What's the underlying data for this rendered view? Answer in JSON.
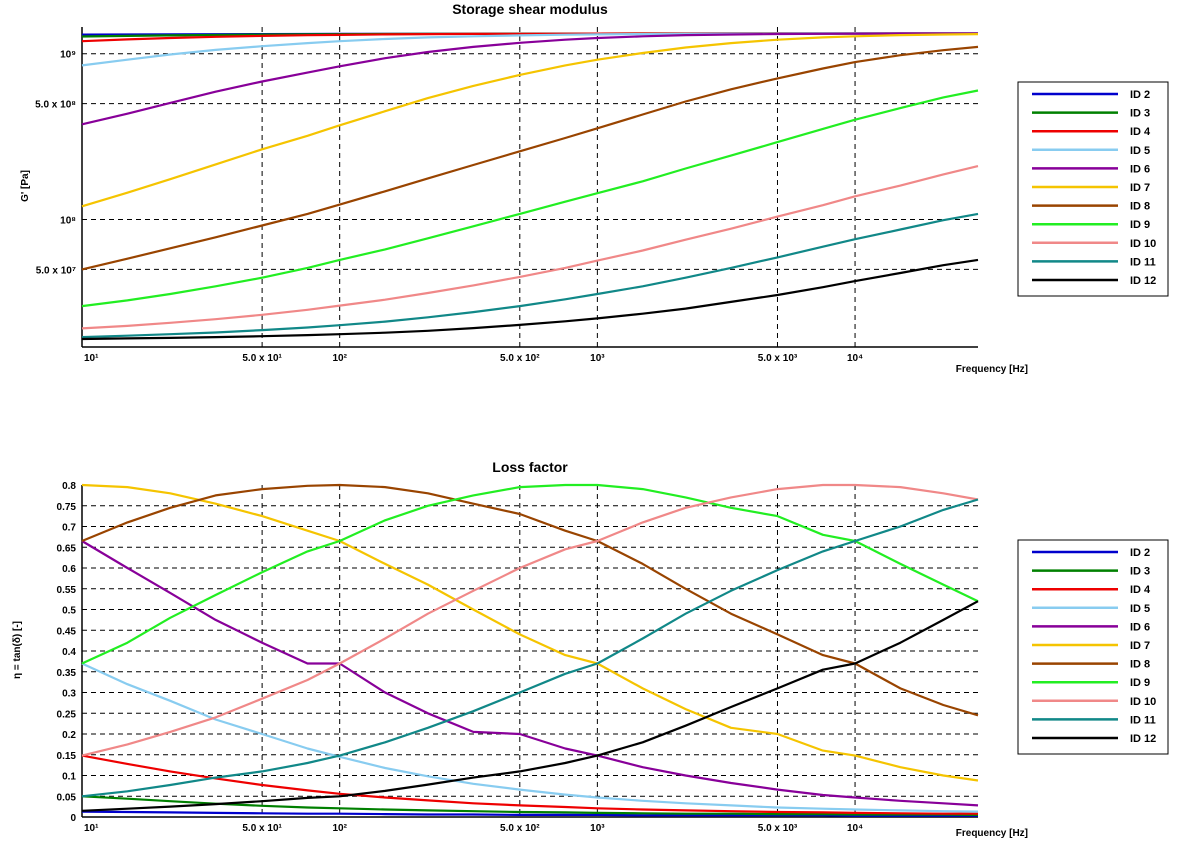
{
  "chart_data": [
    {
      "type": "line",
      "title": "Storage shear modulus",
      "xlabel": "Frequency [Hz]",
      "ylabel": "G' [Pa]",
      "xscale": "log",
      "yscale": "log",
      "xlim": [
        10,
        30000
      ],
      "ylim": [
        17000000,
        1450000000
      ],
      "x": [
        10,
        15,
        22,
        33,
        50,
        75,
        100,
        150,
        220,
        330,
        500,
        750,
        1000,
        1500,
        2200,
        3300,
        5000,
        7500,
        10000,
        15000,
        22000,
        30000
      ],
      "x_ticks": [
        {
          "value": 10,
          "label": "10¹"
        },
        {
          "value": 50,
          "label": "5.0 x 10¹"
        },
        {
          "value": 100,
          "label": "10²"
        },
        {
          "value": 500,
          "label": "5.0 x 10²"
        },
        {
          "value": 1000,
          "label": "10³"
        },
        {
          "value": 5000,
          "label": "5.0 x 10³"
        },
        {
          "value": 10000,
          "label": "10⁴"
        }
      ],
      "y_ticks": [
        {
          "value": 1000000000,
          "label": "10⁹"
        },
        {
          "value": 500000000,
          "label": "5.0 x 10⁸"
        },
        {
          "value": 100000000,
          "label": "10⁸"
        },
        {
          "value": 50000000,
          "label": "5.0 x 10⁷"
        }
      ],
      "grid": true,
      "legend_position": "right",
      "series": [
        {
          "name": "ID 2",
          "color": "#0000cc",
          "values": [
            1304000000,
            1307000000,
            1310000000,
            1312000000,
            1314000000,
            1316000000,
            1317000000,
            1318000000,
            1319000000,
            1320000000,
            1321000000,
            1322000000,
            1322000000,
            1323000000,
            1323000000,
            1324000000,
            1324000000,
            1324000000,
            1325000000,
            1325000000,
            1325000000,
            1325000000
          ]
        },
        {
          "name": "ID 3",
          "color": "#008000",
          "values": [
            1270000000,
            1281000000,
            1290000000,
            1298000000,
            1304000000,
            1309000000,
            1312000000,
            1315000000,
            1318000000,
            1320000000,
            1321000000,
            1322000000,
            1323000000,
            1324000000,
            1324000000,
            1325000000,
            1325000000,
            1325000000,
            1325000000,
            1325000000,
            1325000000,
            1325000000
          ]
        },
        {
          "name": "ID 4",
          "color": "#ee0000",
          "values": [
            1190000000,
            1220000000,
            1245000000,
            1265000000,
            1281000000,
            1293000000,
            1300000000,
            1308000000,
            1313000000,
            1317000000,
            1320000000,
            1322000000,
            1323000000,
            1324000000,
            1324000000,
            1325000000,
            1325000000,
            1325000000,
            1325000000,
            1325000000,
            1325000000,
            1325000000
          ]
        },
        {
          "name": "ID 5",
          "color": "#88ccf0",
          "values": [
            850000000,
            920000000,
            990000000,
            1055000000,
            1110000000,
            1160000000,
            1190000000,
            1228000000,
            1255000000,
            1275000000,
            1290000000,
            1302000000,
            1308000000,
            1314000000,
            1318000000,
            1321000000,
            1322000000,
            1324000000,
            1324000000,
            1325000000,
            1325000000,
            1325000000
          ]
        },
        {
          "name": "ID 6",
          "color": "#880099",
          "values": [
            375000000,
            435000000,
            505000000,
            590000000,
            680000000,
            770000000,
            840000000,
            940000000,
            1025000000,
            1100000000,
            1165000000,
            1215000000,
            1245000000,
            1275000000,
            1295000000,
            1307000000,
            1315000000,
            1320000000,
            1322000000,
            1324000000,
            1325000000,
            1325000000
          ]
        },
        {
          "name": "ID 7",
          "color": "#f5c400",
          "values": [
            120000000,
            145000000,
            175000000,
            215000000,
            265000000,
            320000000,
            370000000,
            450000000,
            540000000,
            640000000,
            745000000,
            850000000,
            920000000,
            1010000000,
            1090000000,
            1160000000,
            1215000000,
            1255000000,
            1275000000,
            1295000000,
            1307000000,
            1313000000
          ]
        },
        {
          "name": "ID 8",
          "color": "#994400",
          "values": [
            50000000,
            58000000,
            67000000,
            78000000,
            92000000,
            108000000,
            123000000,
            148000000,
            177000000,
            213000000,
            258000000,
            310000000,
            355000000,
            430000000,
            515000000,
            610000000,
            710000000,
            815000000,
            890000000,
            980000000,
            1050000000,
            1100000000
          ]
        },
        {
          "name": "ID 9",
          "color": "#22ee22",
          "values": [
            30000000,
            32500000,
            35500000,
            39500000,
            44500000,
            51000000,
            57000000,
            66000000,
            77000000,
            91000000,
            108000000,
            128000000,
            144000000,
            170000000,
            203000000,
            243000000,
            293000000,
            352000000,
            400000000,
            470000000,
            545000000,
            600000000
          ]
        },
        {
          "name": "ID 10",
          "color": "#f08888",
          "values": [
            22000000,
            22800000,
            23800000,
            25000000,
            26600000,
            28500000,
            30200000,
            32800000,
            36000000,
            40000000,
            45000000,
            51000000,
            56500000,
            65000000,
            75500000,
            88000000,
            104000000,
            122000000,
            138000000,
            160000000,
            187000000,
            210000000
          ]
        },
        {
          "name": "ID 11",
          "color": "#118888",
          "values": [
            19500000,
            19900000,
            20300000,
            20800000,
            21500000,
            22300000,
            23000000,
            24200000,
            25700000,
            27600000,
            30000000,
            33000000,
            35500000,
            39500000,
            44500000,
            51000000,
            59000000,
            68500000,
            76000000,
            87000000,
            99000000,
            108000000
          ]
        },
        {
          "name": "ID 12",
          "color": "#000000",
          "values": [
            19000000,
            19150000,
            19300000,
            19500000,
            19750000,
            20050000,
            20300000,
            20750000,
            21300000,
            22100000,
            23100000,
            24300000,
            25300000,
            27000000,
            29000000,
            31800000,
            35000000,
            39000000,
            42500000,
            47500000,
            53000000,
            57000000
          ]
        }
      ]
    },
    {
      "type": "line",
      "title": "Loss factor",
      "xlabel": "Frequency [Hz]",
      "ylabel": "η = tan(δ) [-]",
      "xscale": "log",
      "yscale": "linear",
      "xlim": [
        10,
        30000
      ],
      "ylim": [
        0,
        0.8
      ],
      "x": [
        10,
        15,
        22,
        33,
        50,
        75,
        100,
        150,
        220,
        330,
        500,
        750,
        1000,
        1500,
        2200,
        3300,
        5000,
        7500,
        10000,
        15000,
        22000,
        30000
      ],
      "x_ticks": [
        {
          "value": 10,
          "label": "10¹"
        },
        {
          "value": 50,
          "label": "5.0 x 10¹"
        },
        {
          "value": 100,
          "label": "10²"
        },
        {
          "value": 500,
          "label": "5.0 x 10²"
        },
        {
          "value": 1000,
          "label": "10³"
        },
        {
          "value": 5000,
          "label": "5.0 x 10³"
        },
        {
          "value": 10000,
          "label": "10⁴"
        }
      ],
      "y_ticks": [
        {
          "value": 0,
          "label": "0"
        },
        {
          "value": 0.05,
          "label": "0.05"
        },
        {
          "value": 0.1,
          "label": "0.1"
        },
        {
          "value": 0.15,
          "label": "0.15"
        },
        {
          "value": 0.2,
          "label": "0.2"
        },
        {
          "value": 0.25,
          "label": "0.25"
        },
        {
          "value": 0.3,
          "label": "0.3"
        },
        {
          "value": 0.35,
          "label": "0.35"
        },
        {
          "value": 0.4,
          "label": "0.4"
        },
        {
          "value": 0.45,
          "label": "0.45"
        },
        {
          "value": 0.5,
          "label": "0.5"
        },
        {
          "value": 0.55,
          "label": "0.55"
        },
        {
          "value": 0.6,
          "label": "0.6"
        },
        {
          "value": 0.65,
          "label": "0.65"
        },
        {
          "value": 0.7,
          "label": "0.7"
        },
        {
          "value": 0.75,
          "label": "0.75"
        },
        {
          "value": 0.8,
          "label": "0.8"
        }
      ],
      "grid": true,
      "legend_position": "right",
      "series": [
        {
          "name": "ID 2",
          "color": "#0000cc",
          "values": [
            0.013,
            0.012,
            0.011,
            0.01,
            0.009,
            0.008,
            0.008,
            0.007,
            0.006,
            0.006,
            0.005,
            0.005,
            0.005,
            0.004,
            0.004,
            0.004,
            0.004,
            0.004,
            0.003,
            0.003,
            0.003,
            0.003
          ]
        },
        {
          "name": "ID 3",
          "color": "#008000",
          "values": [
            0.05,
            0.044,
            0.038,
            0.032,
            0.027,
            0.023,
            0.021,
            0.018,
            0.016,
            0.014,
            0.012,
            0.011,
            0.01,
            0.009,
            0.008,
            0.008,
            0.007,
            0.007,
            0.006,
            0.006,
            0.006,
            0.005
          ]
        },
        {
          "name": "ID 4",
          "color": "#ee0000",
          "values": [
            0.148,
            0.128,
            0.11,
            0.093,
            0.077,
            0.064,
            0.056,
            0.047,
            0.04,
            0.033,
            0.028,
            0.024,
            0.021,
            0.018,
            0.016,
            0.014,
            0.012,
            0.011,
            0.01,
            0.009,
            0.008,
            0.008
          ]
        },
        {
          "name": "ID 5",
          "color": "#88ccf0",
          "values": [
            0.37,
            0.32,
            0.28,
            0.235,
            0.2,
            0.165,
            0.145,
            0.118,
            0.098,
            0.08,
            0.066,
            0.054,
            0.047,
            0.039,
            0.033,
            0.028,
            0.023,
            0.02,
            0.018,
            0.016,
            0.014,
            0.013
          ]
        },
        {
          "name": "ID 6",
          "color": "#880099",
          "values": [
            0.665,
            0.6,
            0.54,
            0.475,
            0.42,
            0.37,
            0.37,
            0.3,
            0.25,
            0.205,
            0.2,
            0.165,
            0.148,
            0.12,
            0.1,
            0.082,
            0.066,
            0.053,
            0.047,
            0.039,
            0.033,
            0.028
          ]
        },
        {
          "name": "ID 7",
          "color": "#f5c400",
          "values": [
            0.8,
            0.795,
            0.78,
            0.755,
            0.725,
            0.69,
            0.665,
            0.61,
            0.56,
            0.5,
            0.44,
            0.39,
            0.37,
            0.31,
            0.26,
            0.215,
            0.2,
            0.16,
            0.148,
            0.12,
            0.1,
            0.088
          ]
        },
        {
          "name": "ID 8",
          "color": "#994400",
          "values": [
            0.665,
            0.71,
            0.745,
            0.775,
            0.79,
            0.798,
            0.8,
            0.795,
            0.78,
            0.755,
            0.73,
            0.69,
            0.665,
            0.61,
            0.55,
            0.49,
            0.44,
            0.39,
            0.37,
            0.31,
            0.27,
            0.245
          ]
        },
        {
          "name": "ID 9",
          "color": "#22ee22",
          "values": [
            0.37,
            0.42,
            0.48,
            0.535,
            0.59,
            0.64,
            0.665,
            0.715,
            0.75,
            0.775,
            0.795,
            0.8,
            0.8,
            0.79,
            0.77,
            0.745,
            0.725,
            0.68,
            0.665,
            0.61,
            0.56,
            0.52
          ]
        },
        {
          "name": "ID 10",
          "color": "#f08888",
          "values": [
            0.148,
            0.175,
            0.205,
            0.24,
            0.285,
            0.33,
            0.37,
            0.43,
            0.49,
            0.545,
            0.6,
            0.645,
            0.665,
            0.71,
            0.745,
            0.77,
            0.79,
            0.8,
            0.8,
            0.795,
            0.78,
            0.765
          ]
        },
        {
          "name": "ID 11",
          "color": "#118888",
          "values": [
            0.05,
            0.062,
            0.077,
            0.095,
            0.11,
            0.13,
            0.148,
            0.18,
            0.215,
            0.255,
            0.3,
            0.345,
            0.37,
            0.43,
            0.49,
            0.545,
            0.595,
            0.64,
            0.665,
            0.7,
            0.74,
            0.765
          ]
        },
        {
          "name": "ID 12",
          "color": "#000000",
          "values": [
            0.015,
            0.02,
            0.025,
            0.031,
            0.038,
            0.046,
            0.05,
            0.063,
            0.078,
            0.095,
            0.11,
            0.13,
            0.148,
            0.18,
            0.22,
            0.265,
            0.31,
            0.355,
            0.37,
            0.42,
            0.475,
            0.52
          ]
        }
      ]
    }
  ]
}
